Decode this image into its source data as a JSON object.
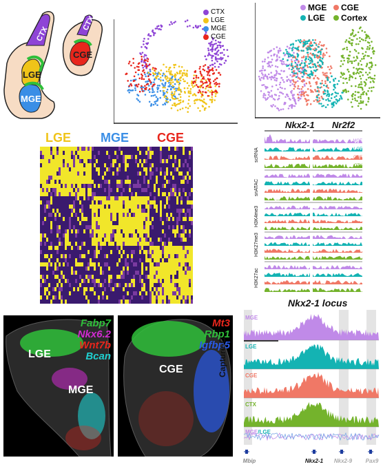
{
  "colors": {
    "ctx": "#8e44d6",
    "lge": "#f0c419",
    "mge": "#3a8ee6",
    "cge": "#e8261c",
    "cortex": "#74b32c",
    "teal": "#14b3b3",
    "salmon": "#f07866",
    "heat_low": "#3a1a6e",
    "heat_high": "#f1e62a"
  },
  "schematic": {
    "ctx": "CTX",
    "lge": "LGE",
    "mge": "MGE",
    "cge": "CGE"
  },
  "umap1": {
    "legend": [
      {
        "label": "CTX",
        "color": "#8e44d6"
      },
      {
        "label": "LGE",
        "color": "#f0c419"
      },
      {
        "label": "MGE",
        "color": "#3a8ee6"
      },
      {
        "label": "CGE",
        "color": "#e8261c"
      }
    ]
  },
  "umap2": {
    "legend": [
      {
        "label": "MGE",
        "color": "#c08ae8"
      },
      {
        "label": "CGE",
        "color": "#f07866"
      },
      {
        "label": "LGE",
        "color": "#14b3b3"
      },
      {
        "label": "Cortex",
        "color": "#74b32c"
      }
    ]
  },
  "heatmap": {
    "columns": [
      {
        "label": "LGE",
        "color": "#f0c419"
      },
      {
        "label": "MGE",
        "color": "#3a8ee6"
      },
      {
        "label": "CGE",
        "color": "#e8261c"
      }
    ]
  },
  "tracks": {
    "genes": [
      "Nkx2-1",
      "Nr2f2"
    ],
    "assays": [
      "scRNA",
      "snATAC",
      "H3K4me3",
      "H3K27me3",
      "H3K27ac"
    ],
    "rows": [
      {
        "label": "MGE",
        "color": "#c08ae8"
      },
      {
        "label": "LGE",
        "color": "#14b3b3"
      },
      {
        "label": "CGE",
        "color": "#f07866"
      },
      {
        "label": "CTX",
        "color": "#74b32c"
      }
    ]
  },
  "fish_left": {
    "markers": [
      {
        "label": "Fabp7",
        "color": "#2fbf3a"
      },
      {
        "label": "Nkx6.2",
        "color": "#d02ad0"
      },
      {
        "label": "Wnt7b",
        "color": "#e8261c"
      },
      {
        "label": "Bcan",
        "color": "#20d0d0"
      }
    ],
    "regions": [
      "LGE",
      "MGE"
    ]
  },
  "fish_right": {
    "markers": [
      {
        "label": "Mt3",
        "color": "#e8261c"
      },
      {
        "label": "Rbp1",
        "color": "#2fbf3a"
      },
      {
        "label": "Igfbp5",
        "color": "#2a5ae8"
      }
    ],
    "regions": [
      "CGE"
    ]
  },
  "capture": {
    "title": "Nkx2-1 locus",
    "ylabel": "Capture-C",
    "tracks": [
      {
        "label": "MGE",
        "color": "#c08ae8"
      },
      {
        "label": "LGE",
        "color": "#14b3b3"
      },
      {
        "label": "CGE",
        "color": "#f07866"
      },
      {
        "label": "CTX",
        "color": "#74b32c"
      }
    ],
    "ratio_label_a": "MGE",
    "ratio_label_b": "/LGE",
    "genes": [
      "Mbip",
      "Nkx2-1",
      "Nkx2-9",
      "Pax9"
    ]
  }
}
